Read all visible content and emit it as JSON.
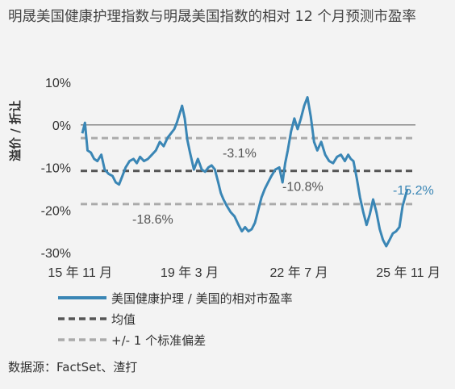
{
  "chart_data": {
    "type": "line",
    "title": "明晟美国健康护理指数与明晟美国指数的相对 12 个月预测市盈率",
    "ylabel": "溢价 / 折让",
    "ylim": [
      -30,
      10
    ],
    "yticks": [
      "10%",
      "0%",
      "-10%",
      "-20%",
      "-30%"
    ],
    "ytick_values": [
      10,
      0,
      -10,
      -20,
      -30
    ],
    "xlim": [
      2015.85,
      2026.05
    ],
    "xticks": [
      "15 年 11 月",
      "19 年 3 月",
      "22 年 7 月",
      "25 年 11 月"
    ],
    "xtick_values": [
      2015.833,
      2019.167,
      2022.5,
      2025.833
    ],
    "series": [
      {
        "name": "美国健康护理 / 美国的相对市盈率",
        "color": "#3a86b5",
        "style": "solid",
        "x": [
          2015.9,
          2015.98,
          2016.06,
          2016.16,
          2016.26,
          2016.36,
          2016.48,
          2016.58,
          2016.7,
          2016.82,
          2016.92,
          2017.02,
          2017.12,
          2017.22,
          2017.34,
          2017.46,
          2017.56,
          2017.66,
          2017.78,
          2017.9,
          2018.02,
          2018.14,
          2018.26,
          2018.38,
          2018.5,
          2018.6,
          2018.7,
          2018.78,
          2018.86,
          2018.94,
          2019.02,
          2019.1,
          2019.18,
          2019.3,
          2019.42,
          2019.54,
          2019.64,
          2019.74,
          2019.84,
          2019.94,
          2020.04,
          2020.12,
          2020.2,
          2020.3,
          2020.42,
          2020.54,
          2020.66,
          2020.76,
          2020.86,
          2020.96,
          2021.06,
          2021.16,
          2021.26,
          2021.36,
          2021.46,
          2021.56,
          2021.66,
          2021.78,
          2021.9,
          2022.0,
          2022.08,
          2022.16,
          2022.26,
          2022.36,
          2022.46,
          2022.56,
          2022.66,
          2022.76,
          2022.86,
          2022.96,
          2023.06,
          2023.18,
          2023.3,
          2023.42,
          2023.54,
          2023.66,
          2023.78,
          2023.9,
          2024.0,
          2024.08,
          2024.16,
          2024.26,
          2024.36,
          2024.46,
          2024.56,
          2024.66,
          2024.76,
          2024.86,
          2024.96,
          2025.06,
          2025.16,
          2025.26,
          2025.36,
          2025.46,
          2025.56,
          2025.66,
          2025.8
        ],
        "y": [
          -2.0,
          0.5,
          -6.0,
          -6.5,
          -8.0,
          -8.5,
          -7.0,
          -10.5,
          -11.5,
          -12.0,
          -13.5,
          -14.0,
          -12.0,
          -10.0,
          -8.5,
          -8.0,
          -9.0,
          -7.5,
          -8.5,
          -8.0,
          -7.0,
          -6.0,
          -4.0,
          -5.0,
          -3.0,
          -2.0,
          -1.0,
          0.5,
          2.5,
          4.5,
          1.5,
          -3.5,
          -6.5,
          -10.5,
          -8.0,
          -10.5,
          -11.0,
          -10.0,
          -9.5,
          -10.5,
          -13.5,
          -16.0,
          -17.5,
          -19.0,
          -20.5,
          -21.5,
          -23.5,
          -25.0,
          -24.0,
          -25.0,
          -24.5,
          -23.0,
          -20.0,
          -17.0,
          -15.0,
          -13.5,
          -12.0,
          -10.5,
          -10.0,
          -13.5,
          -9.0,
          -6.0,
          -1.5,
          1.5,
          -1.0,
          1.5,
          4.5,
          6.5,
          2.0,
          -4.0,
          -6.0,
          -4.0,
          -7.0,
          -8.5,
          -9.0,
          -7.5,
          -7.0,
          -8.5,
          -7.0,
          -8.0,
          -8.5,
          -12.5,
          -17.0,
          -20.5,
          -23.5,
          -21.0,
          -17.5,
          -20.5,
          -24.5,
          -27.0,
          -28.5,
          -27.0,
          -25.5,
          -25.0,
          -24.0,
          -19.0,
          -15.2
        ]
      },
      {
        "name": "均值",
        "color": "#555555",
        "style": "dashed",
        "value": -10.8
      },
      {
        "name": "+/- 1 个标准偏差",
        "color": "#aaaaaa",
        "style": "dashed",
        "values": [
          -3.1,
          -18.6
        ]
      }
    ],
    "annotations": {
      "latest": "-15.2%",
      "mean": "-10.8%",
      "upper": "-3.1%",
      "lower": "-18.6%"
    },
    "legend_position": "bottom-left"
  },
  "source": "数据源：FactSet、渣打"
}
